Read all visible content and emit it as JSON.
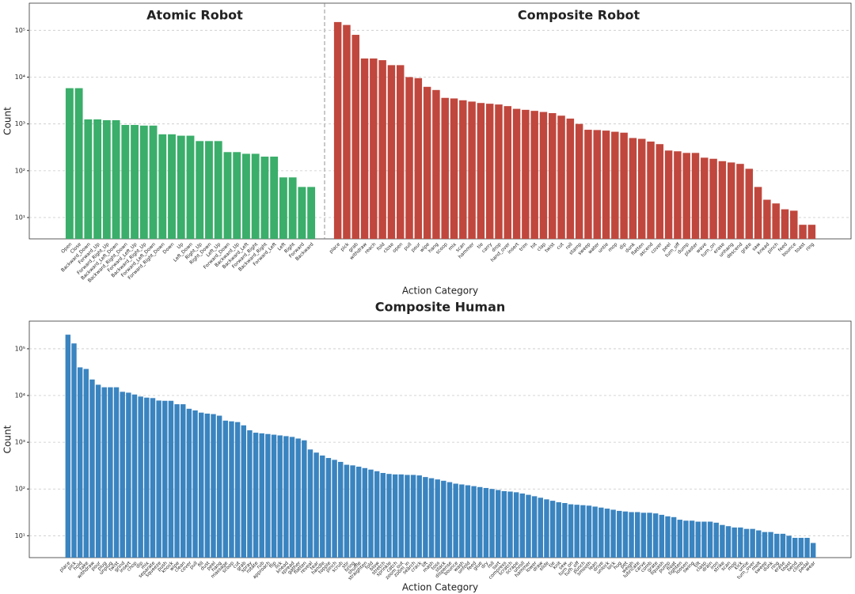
{
  "chart_data": [
    {
      "type": "bar",
      "title": "Atomic Robot",
      "color": "#3aae6a",
      "categories": [
        "Open",
        "Close",
        "Backward_Down",
        "Forward_Up",
        "Forward_Right_Up",
        "Backward_Left_Down",
        "Backward_Right_Down",
        "Forward_Left_Up",
        "Backward_Right_Up",
        "Forward_Left_Down",
        "Forward_Right_Down",
        "Down",
        "Up",
        "Left_Down",
        "Right_Up",
        "Right_Down",
        "Left_Up",
        "Forward_Down",
        "Backward_Up",
        "Backward_Left",
        "Forward_Right",
        "Backward_Right",
        "Forward_Left",
        "Left",
        "Right",
        "Forward",
        "Backward"
      ],
      "values": [
        5800,
        5800,
        1250,
        1250,
        1200,
        1200,
        950,
        950,
        920,
        920,
        600,
        600,
        560,
        560,
        430,
        430,
        430,
        250,
        250,
        230,
        230,
        200,
        200,
        72,
        72,
        45,
        45
      ],
      "xlabel": "Action Category",
      "ylabel": "Count",
      "log_scale": true,
      "grid": true,
      "ylim": [
        3.5,
        380000
      ],
      "yticks": [
        {
          "value": 10,
          "label": "10¹"
        },
        {
          "value": 100,
          "label": "10²"
        },
        {
          "value": 1000,
          "label": "10³"
        },
        {
          "value": 10000,
          "label": "10⁴"
        },
        {
          "value": 100000,
          "label": "10⁵"
        }
      ]
    },
    {
      "type": "bar",
      "title": "Composite Robot",
      "color": "#c0473d",
      "categories": [
        "place",
        "pick",
        "grab",
        "withdraw",
        "reach",
        "fold",
        "close",
        "open",
        "pull",
        "pour",
        "wipe",
        "hang",
        "scoop",
        "mix",
        "scan",
        "hammer",
        "tie",
        "carry",
        "drop",
        "hand_over",
        "insert",
        "trim",
        "hit",
        "clap",
        "twist",
        "cut",
        "roll",
        "stamp",
        "sweep",
        "water",
        "untie",
        "mop",
        "dip",
        "dunk",
        "flatten",
        "ascend",
        "cover",
        "peel",
        "turn_off",
        "dump",
        "plaster",
        "wave",
        "turn_on",
        "erase",
        "unhang",
        "descend",
        "grate",
        "saw",
        "knead",
        "pinch",
        "feed",
        "bounce",
        "toast",
        "ring"
      ],
      "values": [
        150000,
        130000,
        80000,
        25000,
        25000,
        23000,
        18000,
        18000,
        10000,
        9500,
        6200,
        5300,
        3600,
        3500,
        3200,
        3000,
        2800,
        2700,
        2600,
        2400,
        2100,
        2000,
        1900,
        1800,
        1700,
        1500,
        1300,
        1000,
        750,
        740,
        720,
        680,
        650,
        500,
        480,
        420,
        370,
        270,
        260,
        240,
        240,
        190,
        180,
        160,
        150,
        140,
        110,
        45,
        24,
        20,
        15,
        14,
        7,
        7
      ]
    },
    {
      "type": "bar",
      "title": "Composite Human",
      "color": "#3a84c0",
      "categories": [
        "place",
        "pick",
        "hold",
        "take",
        "withdraw",
        "pour",
        "plug",
        "unplug",
        "twist",
        "grind",
        "insert",
        "chop",
        "dip",
        "mix",
        "separate",
        "squeeze",
        "push",
        "knock",
        "wipe",
        "clean",
        "cover",
        "pull",
        "fill",
        "dust",
        "peel",
        "hang",
        "massage",
        "scoop",
        "cut",
        "grab",
        "spray",
        "rotate",
        "rub",
        "approach",
        "flip",
        "lick",
        "knead",
        "spread",
        "gather",
        "flatten",
        "reveal",
        "tear",
        "handle",
        "topple",
        "pinch",
        "scrub",
        "stir",
        "bring",
        "shuffle",
        "straighten",
        "fold",
        "blow",
        "stretch",
        "sprinkle",
        "catch",
        "zoom_out",
        "zoom_in",
        "search",
        "crack",
        "lift",
        "mash",
        "toss",
        "stack",
        "dispense",
        "bounce",
        "wash",
        "unfold",
        "feed",
        "glue",
        "dry",
        "roll",
        "sort",
        "compress",
        "scratch",
        "scrape",
        "unroll",
        "hammer",
        "lower",
        "draw",
        "slide",
        "tie",
        "knit",
        "sew",
        "turn_on",
        "turn_off",
        "punch",
        "smooth",
        "lean",
        "drive",
        "unlock",
        "lock",
        "hug",
        "pet",
        "weigh",
        "lubricate",
        "carve",
        "comb",
        "grate",
        "squash",
        "pump",
        "float",
        "tighten",
        "loosen",
        "swing",
        "tilt",
        "clasp",
        "drain",
        "iron",
        "strike",
        "scan",
        "mop",
        "kick",
        "untie",
        "turn_over",
        "melt",
        "sweep",
        "dunk",
        "ring",
        "erase",
        "toast",
        "bend",
        "climb",
        "pedal",
        "wear"
      ],
      "values": [
        200000,
        130000,
        40000,
        37000,
        22000,
        17000,
        15000,
        15000,
        15000,
        12000,
        11500,
        10500,
        9500,
        9000,
        8800,
        7800,
        7700,
        7700,
        6500,
        6500,
        5200,
        4800,
        4300,
        4100,
        4000,
        3700,
        2900,
        2800,
        2700,
        2300,
        1800,
        1600,
        1550,
        1500,
        1450,
        1400,
        1350,
        1300,
        1200,
        1100,
        700,
        600,
        520,
        460,
        420,
        380,
        330,
        320,
        300,
        280,
        260,
        240,
        220,
        210,
        205,
        205,
        200,
        200,
        195,
        180,
        170,
        160,
        150,
        140,
        130,
        125,
        120,
        115,
        110,
        105,
        100,
        95,
        90,
        88,
        85,
        80,
        75,
        70,
        65,
        60,
        56,
        52,
        50,
        47,
        46,
        45,
        44,
        42,
        40,
        38,
        36,
        34,
        33,
        32,
        32,
        31,
        31,
        30,
        28,
        26,
        25,
        22,
        21,
        21,
        20,
        20,
        20,
        19,
        17,
        16,
        15,
        15,
        14,
        14,
        13,
        12,
        12,
        11,
        11,
        10,
        9,
        9,
        9,
        7
      ],
      "xlabel": "Action Category",
      "ylabel": "Count",
      "log_scale": true,
      "grid": true,
      "ylim": [
        3.4,
        390000
      ],
      "yticks": [
        {
          "value": 10,
          "label": "10¹"
        },
        {
          "value": 100,
          "label": "10²"
        },
        {
          "value": 1000,
          "label": "10³"
        },
        {
          "value": 10000,
          "label": "10⁴"
        },
        {
          "value": 100000,
          "label": "10⁵"
        }
      ]
    }
  ]
}
